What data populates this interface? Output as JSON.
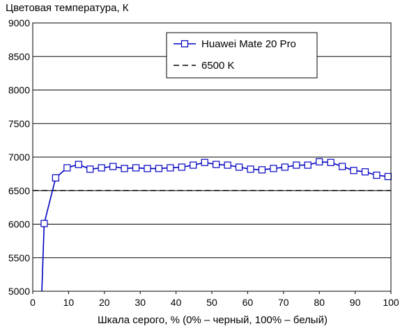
{
  "chart_data": {
    "type": "line",
    "ylabel": "Цветовая температура, К",
    "xlabel": "Шкала серого, % (0% – черный, 100% – белый)",
    "xlim": [
      0,
      100
    ],
    "ylim": [
      5000,
      9000
    ],
    "xticks": [
      "0",
      "10",
      "20",
      "30",
      "40",
      "50",
      "60",
      "70",
      "80",
      "90",
      "100"
    ],
    "yticks": [
      "5000",
      "5500",
      "6000",
      "6500",
      "7000",
      "7500",
      "8000",
      "8500",
      "9000"
    ],
    "grid": "horizontal",
    "legend_position": "top-right",
    "series": [
      {
        "name": "Huawei Mate 20 Pro",
        "color": "#0000c0",
        "marker": "square",
        "x": [
          2.5,
          3.2,
          6.4,
          9.6,
          12.8,
          16.0,
          19.2,
          22.4,
          25.6,
          28.8,
          32.0,
          35.2,
          38.4,
          41.6,
          44.8,
          48.0,
          51.2,
          54.4,
          57.6,
          60.8,
          64.0,
          67.2,
          70.4,
          73.6,
          76.8,
          80.0,
          83.2,
          86.4,
          89.6,
          92.8,
          96.0,
          99.2
        ],
        "y": [
          4950,
          6010,
          6690,
          6840,
          6890,
          6820,
          6840,
          6860,
          6830,
          6840,
          6830,
          6830,
          6840,
          6850,
          6880,
          6920,
          6890,
          6880,
          6850,
          6820,
          6810,
          6830,
          6850,
          6880,
          6880,
          6930,
          6920,
          6860,
          6800,
          6780,
          6730,
          6710
        ],
        "marker_from_index": 1
      },
      {
        "name": "6500 K",
        "color": "#000000",
        "dashed": true,
        "x": [
          0,
          100
        ],
        "y": [
          6500,
          6500
        ]
      }
    ]
  }
}
